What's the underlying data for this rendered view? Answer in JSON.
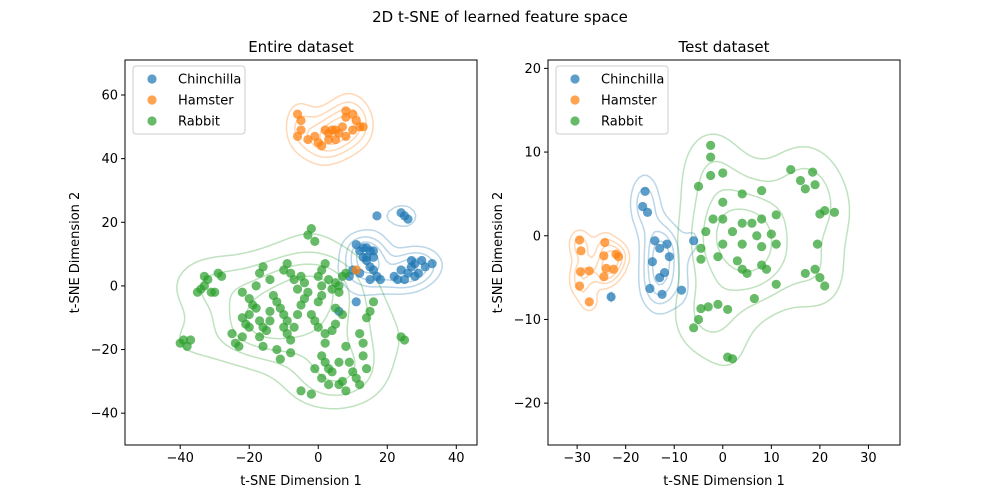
{
  "suptitle": "2D t-SNE of learned feature space",
  "colors": {
    "Chinchilla": "#1f77b4",
    "Hamster": "#ff7f0e",
    "Rabbit": "#2ca02c"
  },
  "chart_data": [
    {
      "type": "scatter",
      "title": "Entire dataset",
      "xlabel": "t-SNE Dimension 1",
      "ylabel": "t-SNE Dimension 2",
      "xlim": [
        -56,
        46
      ],
      "ylim": [
        -50,
        71
      ],
      "xticks": [
        -40,
        -20,
        0,
        20,
        40
      ],
      "yticks": [
        -40,
        -20,
        0,
        20,
        40,
        60
      ],
      "legend": {
        "location": "upper-left",
        "entries": [
          "Chinchilla",
          "Hamster",
          "Rabbit"
        ]
      },
      "grid": false,
      "series": [
        {
          "name": "Chinchilla",
          "points": [
            [
              9,
              3
            ],
            [
              10,
              5
            ],
            [
              11,
              13
            ],
            [
              12,
              11
            ],
            [
              13,
              12
            ],
            [
              14,
              12
            ],
            [
              15,
              11
            ],
            [
              16,
              11
            ],
            [
              14,
              8
            ],
            [
              16,
              9
            ],
            [
              13,
              9
            ],
            [
              15,
              6
            ],
            [
              16,
              5
            ],
            [
              17,
              3
            ],
            [
              18,
              2
            ],
            [
              15,
              2
            ],
            [
              14,
              9
            ],
            [
              12,
              4
            ],
            [
              17,
              22
            ],
            [
              24,
              23
            ],
            [
              25,
              22
            ],
            [
              26,
              21
            ],
            [
              22,
              3
            ],
            [
              23,
              2
            ],
            [
              24,
              5
            ],
            [
              26,
              4
            ],
            [
              27,
              6
            ],
            [
              27,
              8
            ],
            [
              28,
              7
            ],
            [
              29,
              4
            ],
            [
              31,
              6
            ],
            [
              33,
              7
            ],
            [
              30,
              8
            ],
            [
              25,
              2
            ],
            [
              28,
              3
            ],
            [
              6,
              -8
            ],
            [
              11,
              -5
            ]
          ]
        },
        {
          "name": "Hamster",
          "points": [
            [
              -6,
              54
            ],
            [
              -5,
              52
            ],
            [
              -5,
              49
            ],
            [
              -6,
              47
            ],
            [
              -3,
              46
            ],
            [
              -1,
              47
            ],
            [
              0,
              45
            ],
            [
              1,
              44
            ],
            [
              3,
              46
            ],
            [
              2,
              49
            ],
            [
              3,
              48
            ],
            [
              4,
              49
            ],
            [
              5,
              49
            ],
            [
              5,
              46
            ],
            [
              6,
              48
            ],
            [
              7,
              50
            ],
            [
              8,
              47
            ],
            [
              8,
              53
            ],
            [
              8,
              55
            ],
            [
              10,
              54
            ],
            [
              11,
              52
            ],
            [
              10,
              49
            ],
            [
              12,
              50
            ],
            [
              13,
              50
            ],
            [
              11,
              5
            ]
          ]
        },
        {
          "name": "Rabbit",
          "points": [
            [
              -40,
              -18
            ],
            [
              -39,
              -17
            ],
            [
              -38,
              -19
            ],
            [
              -37,
              -17
            ],
            [
              -35,
              -2
            ],
            [
              -34,
              -1
            ],
            [
              -33,
              0
            ],
            [
              -33,
              3
            ],
            [
              -32,
              2
            ],
            [
              -31,
              -2
            ],
            [
              -30,
              -2
            ],
            [
              -29,
              4
            ],
            [
              -28,
              3
            ],
            [
              -25,
              -15
            ],
            [
              -24,
              -18
            ],
            [
              -23,
              -19
            ],
            [
              -22,
              -16
            ],
            [
              -22,
              -10
            ],
            [
              -21,
              -12
            ],
            [
              -20,
              -13
            ],
            [
              -20,
              -9
            ],
            [
              -19,
              -6
            ],
            [
              -18,
              -7
            ],
            [
              -17,
              -11
            ],
            [
              -17,
              -16
            ],
            [
              -16,
              -13
            ],
            [
              -16,
              -19
            ],
            [
              -15,
              -14
            ],
            [
              -14,
              -11
            ],
            [
              -14,
              -8
            ],
            [
              -13,
              -3
            ],
            [
              -12,
              -5
            ],
            [
              -11,
              -7
            ],
            [
              -10,
              -9
            ],
            [
              -9,
              -11
            ],
            [
              -10,
              -13
            ],
            [
              -9,
              -15
            ],
            [
              -8,
              -17
            ],
            [
              -8,
              -21
            ],
            [
              -7,
              -13
            ],
            [
              -6,
              -9
            ],
            [
              -5,
              -6
            ],
            [
              -4,
              -4
            ],
            [
              -3,
              -2
            ],
            [
              -2,
              -9
            ],
            [
              -1,
              -11
            ],
            [
              0,
              -13
            ],
            [
              0,
              -5
            ],
            [
              1,
              -3
            ],
            [
              1,
              0
            ],
            [
              2,
              -15
            ],
            [
              2,
              -18
            ],
            [
              1,
              -22
            ],
            [
              2,
              -24
            ],
            [
              3,
              -26
            ],
            [
              4,
              -14
            ],
            [
              5,
              -12
            ],
            [
              5,
              -7
            ],
            [
              6,
              -2
            ],
            [
              7,
              -9
            ],
            [
              8,
              -19
            ],
            [
              9,
              -24
            ],
            [
              10,
              -27
            ],
            [
              11,
              -29
            ],
            [
              12,
              -31
            ],
            [
              13,
              -18
            ],
            [
              13,
              -22
            ],
            [
              14,
              -26
            ],
            [
              14,
              -10
            ],
            [
              15,
              -8
            ],
            [
              16,
              -5
            ],
            [
              -10,
              5
            ],
            [
              -9,
              7
            ],
            [
              -8,
              4
            ],
            [
              -7,
              2
            ],
            [
              -6,
              -1
            ],
            [
              -5,
              3
            ],
            [
              -4,
              1
            ],
            [
              -3,
              16
            ],
            [
              -2,
              18
            ],
            [
              -1,
              14
            ],
            [
              0,
              3
            ],
            [
              1,
              5
            ],
            [
              2,
              7
            ],
            [
              3,
              2
            ],
            [
              4,
              -1
            ],
            [
              5,
              1
            ],
            [
              6,
              0
            ],
            [
              7,
              3
            ],
            [
              8,
              4
            ],
            [
              -12,
              -20
            ],
            [
              -11,
              -23
            ],
            [
              -5,
              -33
            ],
            [
              -2,
              -34
            ],
            [
              -1,
              -26
            ],
            [
              1,
              -29
            ],
            [
              3,
              -31
            ],
            [
              6,
              -31
            ],
            [
              7,
              -30
            ],
            [
              8,
              -33
            ],
            [
              4,
              -27
            ],
            [
              6,
              -24
            ],
            [
              24,
              -16
            ],
            [
              25,
              -17
            ],
            [
              -18,
              0
            ],
            [
              -17,
              4
            ],
            [
              -16,
              6
            ],
            [
              -20,
              -4
            ],
            [
              -22,
              -2
            ],
            [
              -14,
              2
            ],
            [
              12,
              -15
            ]
          ]
        }
      ],
      "density_levels": [
        0.2,
        0.4,
        0.6,
        0.8
      ]
    },
    {
      "type": "scatter",
      "title": "Test dataset",
      "xlabel": "t-SNE Dimension 1",
      "ylabel": "t-SNE Dimension 2",
      "xlim": [
        -36,
        36.5
      ],
      "ylim": [
        -25,
        21
      ],
      "xticks": [
        -30,
        -20,
        -10,
        0,
        10,
        20,
        30
      ],
      "yticks": [
        -20,
        -10,
        0,
        10,
        20
      ],
      "legend": {
        "location": "upper-left",
        "entries": [
          "Chinchilla",
          "Hamster",
          "Rabbit"
        ]
      },
      "grid": false,
      "series": [
        {
          "name": "Chinchilla",
          "points": [
            [
              -16,
              5.3
            ],
            [
              -16.5,
              3.5
            ],
            [
              -15.5,
              2.8
            ],
            [
              -14,
              -0.6
            ],
            [
              -13,
              -1.5
            ],
            [
              -11.5,
              -1
            ],
            [
              -11,
              -2.5
            ],
            [
              -14.5,
              -3.1
            ],
            [
              -12,
              -4.4
            ],
            [
              -13,
              -5
            ],
            [
              -15,
              -6.3
            ],
            [
              -12.5,
              -7
            ],
            [
              -8.5,
              -6.5
            ],
            [
              -6,
              -0.6
            ],
            [
              -23,
              -7.3
            ]
          ]
        },
        {
          "name": "Hamster",
          "points": [
            [
              -29.5,
              -0.5
            ],
            [
              -29.2,
              -1.8
            ],
            [
              -29.3,
              -4.3
            ],
            [
              -29.5,
              -6
            ],
            [
              -27.5,
              -4.2
            ],
            [
              -27.5,
              -7.9
            ],
            [
              -24.3,
              -0.8
            ],
            [
              -24.5,
              -2.4
            ],
            [
              -24,
              -3.9
            ],
            [
              -24.5,
              -4.9
            ],
            [
              -22,
              -2.2
            ],
            [
              -22.5,
              -4
            ],
            [
              -21.5,
              -2.5
            ]
          ]
        },
        {
          "name": "Rabbit",
          "points": [
            [
              -2.5,
              10.8
            ],
            [
              -2.5,
              9.4
            ],
            [
              0,
              7.5
            ],
            [
              -2.5,
              7.2
            ],
            [
              -5,
              5.9
            ],
            [
              4,
              5
            ],
            [
              8,
              5.4
            ],
            [
              0,
              4
            ],
            [
              -2,
              2
            ],
            [
              0,
              2
            ],
            [
              4,
              1.5
            ],
            [
              6,
              1.5
            ],
            [
              8,
              2
            ],
            [
              11,
              2.5
            ],
            [
              -3.5,
              0.5
            ],
            [
              2,
              0.5
            ],
            [
              7,
              0
            ],
            [
              10,
              0.2
            ],
            [
              -4.5,
              -1.5
            ],
            [
              0,
              -1
            ],
            [
              4,
              -1
            ],
            [
              8,
              -1.3
            ],
            [
              11,
              -1
            ],
            [
              -1,
              -2.5
            ],
            [
              3,
              -3
            ],
            [
              8,
              -3.5
            ],
            [
              4,
              -4
            ],
            [
              5,
              -4.5
            ],
            [
              9,
              -4
            ],
            [
              -4.5,
              -2.8
            ],
            [
              6.5,
              -7.5
            ],
            [
              11,
              -5.8
            ],
            [
              -3,
              -8.5
            ],
            [
              -1,
              -8.2
            ],
            [
              1,
              -8.8
            ],
            [
              -5,
              -10
            ],
            [
              -6,
              -11
            ],
            [
              -4.5,
              -8.7
            ],
            [
              14,
              7.9
            ],
            [
              16,
              6.6
            ],
            [
              17,
              5.6
            ],
            [
              18.5,
              7.6
            ],
            [
              19,
              6.1
            ],
            [
              20,
              2.6
            ],
            [
              21,
              3
            ],
            [
              23,
              2.8
            ],
            [
              17,
              -4.5
            ],
            [
              19,
              -4
            ],
            [
              20,
              -5
            ],
            [
              19.5,
              -1
            ],
            [
              21,
              -6
            ],
            [
              1,
              -14.5
            ],
            [
              2,
              -14.7
            ]
          ]
        }
      ],
      "density_levels": [
        0.2,
        0.4,
        0.6,
        0.8
      ]
    }
  ]
}
